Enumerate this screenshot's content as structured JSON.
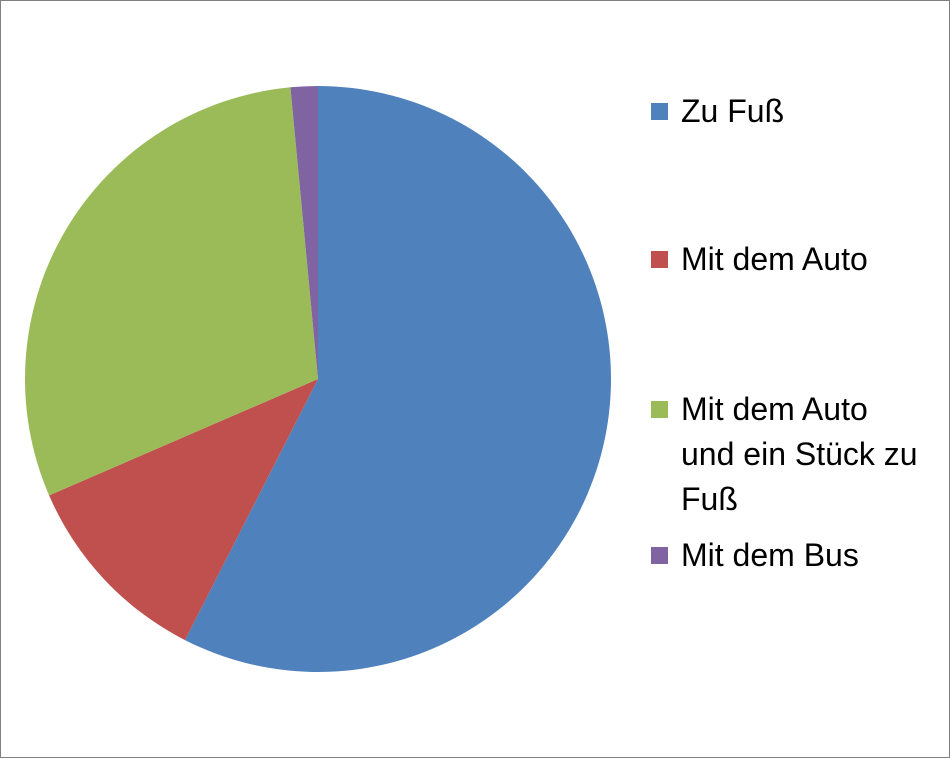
{
  "chart_data": {
    "type": "pie",
    "slices": [
      {
        "label": "Zu Fuß",
        "value": 57.5,
        "color": "#4f81bd"
      },
      {
        "label": "Mit dem Auto",
        "value": 11.0,
        "color": "#c0504d"
      },
      {
        "label": "Mit dem Auto und ein Stück zu Fuß",
        "value": 30.0,
        "color": "#9bbb59"
      },
      {
        "label": "Mit dem Bus",
        "value": 1.5,
        "color": "#8064a2"
      }
    ],
    "legend_position": "right",
    "start_angle": "top",
    "direction": "clockwise"
  }
}
